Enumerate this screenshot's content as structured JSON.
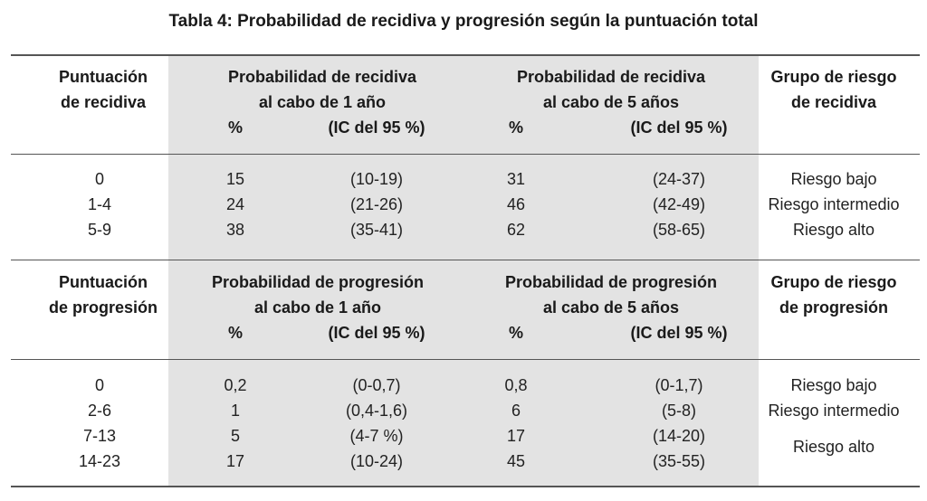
{
  "title": "Tabla 4: Probabilidad de recidiva y progresión según la puntuación total",
  "recidiva": {
    "header": {
      "score_line1": "Puntuación",
      "score_line2": "de recidiva",
      "prob1_line1": "Probabilidad de recidiva",
      "prob1_line2": "al cabo de 1 año",
      "prob5_line1": "Probabilidad de recidiva",
      "prob5_line2": "al cabo de 5 años",
      "pct": "%",
      "ic": "(IC del 95 %)",
      "group_line1": "Grupo de riesgo",
      "group_line2": "de recidiva"
    },
    "rows": [
      {
        "score": "0",
        "p1": "15",
        "ic1": "(10-19)",
        "p5": "31",
        "ic5": "(24-37)",
        "group": "Riesgo bajo"
      },
      {
        "score": "1-4",
        "p1": "24",
        "ic1": "(21-26)",
        "p5": "46",
        "ic5": "(42-49)",
        "group": "Riesgo intermedio"
      },
      {
        "score": "5-9",
        "p1": "38",
        "ic1": "(35-41)",
        "p5": "62",
        "ic5": "(58-65)",
        "group": "Riesgo alto"
      }
    ]
  },
  "progresion": {
    "header": {
      "score_line1": "Puntuación",
      "score_line2": "de progresión",
      "prob1_line1": "Probabilidad de progresión",
      "prob1_line2": "al cabo de 1 año",
      "prob5_line1": "Probabilidad de progresión",
      "prob5_line2": "al cabo de 5 años",
      "pct": "%",
      "ic": "(IC del 95 %)",
      "group_line1": "Grupo de riesgo",
      "group_line2": "de progresión"
    },
    "rows": [
      {
        "score": "0",
        "p1": "0,2",
        "ic1": "(0-0,7)",
        "p5": "0,8",
        "ic5": "(0-1,7)"
      },
      {
        "score": "2-6",
        "p1": "1",
        "ic1": "(0,4-1,6)",
        "p5": "6",
        "ic5": "(5-8)"
      },
      {
        "score": "7-13",
        "p1": "5",
        "ic1": "(4-7 %)",
        "p5": "17",
        "ic5": "(14-20)"
      },
      {
        "score": "14-23",
        "p1": "17",
        "ic1": "(10-24)",
        "p5": "45",
        "ic5": "(35-55)"
      }
    ],
    "groups": [
      "Riesgo bajo",
      "Riesgo intermedio",
      "Riesgo alto"
    ]
  }
}
